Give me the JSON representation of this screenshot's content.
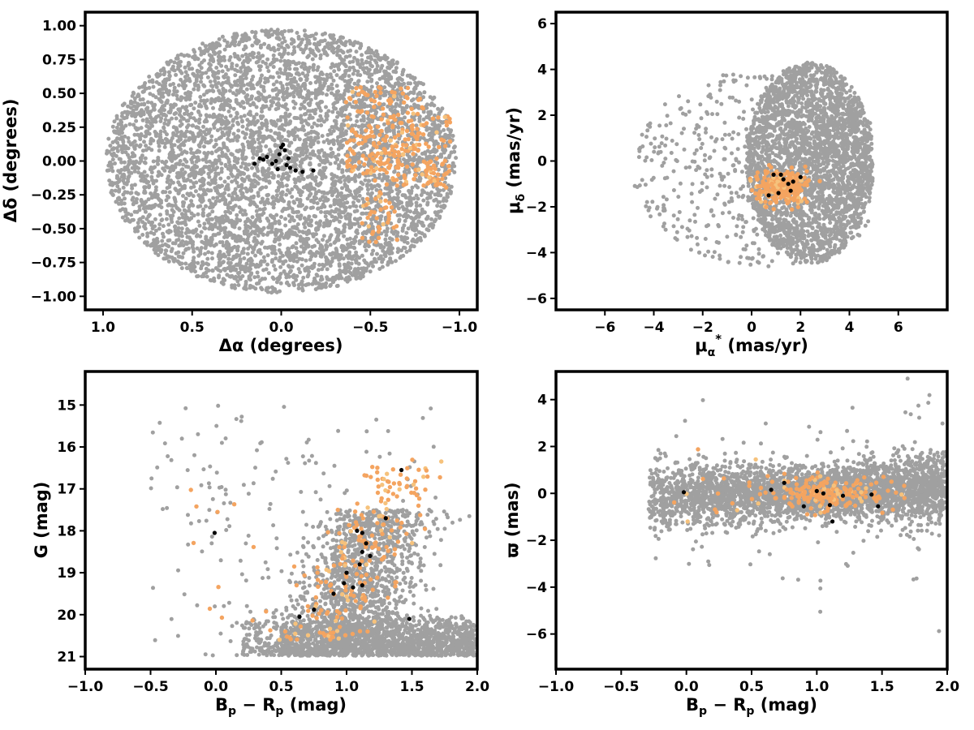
{
  "colors": {
    "field": "#a0a0a0",
    "members": "#f4a460",
    "members_light": "#f6c27c",
    "special": "#000000",
    "frame": "#000000",
    "background": "#ffffff"
  },
  "chart_data": [
    {
      "type": "scatter",
      "panel": "top-left",
      "title": "",
      "xlabel": "Δα (degrees)",
      "ylabel": "Δδ (degrees)",
      "xlim": [
        1.1,
        -1.1
      ],
      "ylim": [
        -1.1,
        1.1
      ],
      "x_inverted": true,
      "xticks": [
        1.0,
        0.5,
        0.0,
        -0.5,
        -1.0
      ],
      "xtick_labels": [
        "1.0",
        "0.5",
        "0.0",
        "−0.5",
        "−1.0"
      ],
      "yticks": [
        1.0,
        0.75,
        0.5,
        0.25,
        0.0,
        -0.25,
        -0.5,
        -0.75,
        -1.0
      ],
      "ytick_labels": [
        "1.00",
        "0.75",
        "0.50",
        "0.25",
        "0.00",
        "−0.25",
        "−0.50",
        "−0.75",
        "−1.00"
      ],
      "grid": false,
      "series": [
        {
          "role": "field",
          "color": "#a0a0a0",
          "count": 5200,
          "distribution": "uniform disk, ellipse semi-axes 0.98 x 0.98 centered 0,0",
          "points": []
        },
        {
          "role": "members",
          "color": "#f4a460",
          "count": 330,
          "distribution": "clump near x -0.45..-0.95, y -0.45..0.55",
          "points": []
        },
        {
          "role": "special",
          "color": "#000000",
          "points": [
            [
              0.15,
              -0.02
            ],
            [
              0.12,
              0.02
            ],
            [
              0.1,
              0.01
            ],
            [
              0.08,
              0.03
            ],
            [
              0.05,
              -0.02
            ],
            [
              0.03,
              0.0
            ],
            [
              0.01,
              0.05
            ],
            [
              0.0,
              0.1
            ],
            [
              -0.01,
              0.12
            ],
            [
              -0.02,
              0.08
            ],
            [
              -0.03,
              -0.03
            ],
            [
              -0.05,
              -0.05
            ],
            [
              -0.08,
              -0.07
            ],
            [
              -0.12,
              -0.08
            ],
            [
              -0.18,
              -0.07
            ],
            [
              0.02,
              -0.06
            ],
            [
              -0.04,
              0.02
            ]
          ]
        }
      ]
    },
    {
      "type": "scatter",
      "panel": "top-right",
      "title": "",
      "xlabel": "μα* (mas/yr)",
      "ylabel": "μδ (mas/yr)",
      "xlim": [
        -8,
        8
      ],
      "ylim": [
        -6.5,
        6.5
      ],
      "xticks": [
        -6,
        -4,
        -2,
        0,
        2,
        4,
        6
      ],
      "xtick_labels": [
        "−6",
        "−4",
        "−2",
        "0",
        "2",
        "4",
        "6"
      ],
      "yticks": [
        6,
        4,
        2,
        0,
        -2,
        -4,
        -6
      ],
      "ytick_labels": [
        "6",
        "4",
        "2",
        "0",
        "−2",
        "−4",
        "−6"
      ],
      "grid": false,
      "series": [
        {
          "role": "field",
          "color": "#a0a0a0",
          "count": 3300,
          "distribution": "dense core near (2.5,0), truncated at mu_alpha 5, sparse tail to -5",
          "points": []
        },
        {
          "role": "members",
          "color": "#f4a460",
          "count": 260,
          "distribution": "clump around (1.2,-1.2)",
          "points": []
        },
        {
          "role": "special",
          "color": "#000000",
          "points": [
            [
              0.9,
              -0.6
            ],
            [
              1.1,
              -1.4
            ],
            [
              1.3,
              -0.8
            ],
            [
              1.5,
              -1.0
            ],
            [
              1.7,
              -0.9
            ],
            [
              2.0,
              -0.7
            ],
            [
              0.7,
              -1.5
            ],
            [
              1.2,
              -0.6
            ],
            [
              1.6,
              -1.3
            ]
          ]
        }
      ]
    },
    {
      "type": "scatter",
      "panel": "bottom-left",
      "title": "",
      "xlabel": "Bp − Rp (mag)",
      "ylabel": "G (mag)",
      "xlim": [
        -1.0,
        2.0
      ],
      "ylim": [
        21.3,
        14.2
      ],
      "y_inverted": true,
      "xticks": [
        -1.0,
        -0.5,
        0.0,
        0.5,
        1.0,
        1.5,
        2.0
      ],
      "xtick_labels": [
        "−1.0",
        "−0.5",
        "0.0",
        "0.5",
        "1.0",
        "1.5",
        "2.0"
      ],
      "yticks": [
        21,
        20,
        19,
        18,
        17,
        16,
        15
      ],
      "ytick_labels": [
        "21",
        "20",
        "19",
        "18",
        "17",
        "16",
        "15"
      ],
      "grid": false,
      "series": [
        {
          "role": "field",
          "color": "#a0a0a0",
          "count": 3000,
          "distribution": "band at G 20-21, main sequence tail to G 15",
          "points": []
        },
        {
          "role": "members",
          "color": "#f4a460",
          "count": 230,
          "distribution": "sequence from (0.8,20.5) to (1.6,16.3)",
          "points": []
        },
        {
          "role": "special",
          "color": "#000000",
          "points": [
            [
              0.64,
              20.05
            ],
            [
              0.75,
              19.88
            ],
            [
              0.9,
              19.5
            ],
            [
              1.05,
              19.35
            ],
            [
              0.98,
              19.25
            ],
            [
              1.12,
              19.3
            ],
            [
              1.0,
              19.0
            ],
            [
              1.1,
              18.8
            ],
            [
              1.12,
              18.5
            ],
            [
              1.15,
              18.3
            ],
            [
              1.18,
              18.6
            ],
            [
              1.12,
              18.05
            ],
            [
              1.08,
              18.0
            ],
            [
              1.3,
              17.7
            ],
            [
              1.42,
              16.55
            ],
            [
              1.48,
              20.1
            ],
            [
              -0.01,
              18.05
            ]
          ]
        }
      ]
    },
    {
      "type": "scatter",
      "panel": "bottom-right",
      "title": "",
      "xlabel": "Bp − Rp (mag)",
      "ylabel": "ϖ (mas)",
      "xlim": [
        -1.0,
        2.0
      ],
      "ylim": [
        -7.5,
        5.2
      ],
      "xticks": [
        -1.0,
        -0.5,
        0.0,
        0.5,
        1.0,
        1.5,
        2.0
      ],
      "xtick_labels": [
        "−1.0",
        "−0.5",
        "0.0",
        "0.5",
        "1.0",
        "1.5",
        "2.0"
      ],
      "yticks": [
        4,
        2,
        0,
        -2,
        -4,
        -6
      ],
      "ytick_labels": [
        "4",
        "2",
        "0",
        "−2",
        "−4",
        "−6"
      ],
      "grid": false,
      "series": [
        {
          "role": "field",
          "color": "#a0a0a0",
          "count": 3300,
          "distribution": "band around parallax 0, spread ~1, rising slightly with colour",
          "points": []
        },
        {
          "role": "members",
          "color": "#f4a460",
          "count": 230,
          "distribution": "clump near colour 1.0, parallax 0",
          "points": []
        },
        {
          "role": "special",
          "color": "#000000",
          "points": [
            [
              -0.02,
              0.05
            ],
            [
              0.75,
              0.45
            ],
            [
              0.9,
              -0.55
            ],
            [
              1.0,
              0.1
            ],
            [
              1.05,
              0.0
            ],
            [
              1.1,
              -0.5
            ],
            [
              1.12,
              -1.2
            ],
            [
              1.2,
              -0.1
            ],
            [
              1.42,
              -0.05
            ],
            [
              1.47,
              -0.55
            ],
            [
              0.65,
              0.15
            ]
          ]
        }
      ]
    }
  ]
}
